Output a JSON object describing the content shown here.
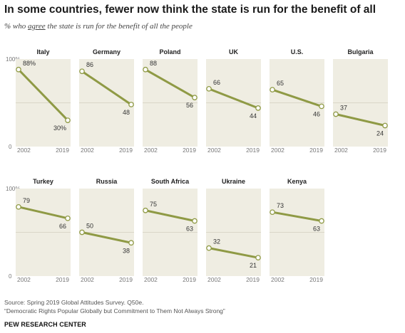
{
  "header": {
    "title": "In some countries, fewer now think the state is run for the benefit of all",
    "subtitle_pre": "% who ",
    "subtitle_em": "agree",
    "subtitle_post": " the state is run for the benefit of all the people"
  },
  "footer": {
    "source": "Source: Spring 2019 Global Attitudes Survey. Q50e.",
    "report": "“Democratic Rights Popular Globally but Commitment to Them Not Always Strong”",
    "org": "PEW RESEARCH CENTER"
  },
  "colors": {
    "line": "#8f9a45",
    "panel": "#efede2",
    "grid": "#d9d6c8",
    "marker_fill": "#ffffff"
  },
  "chart_data": {
    "type": "line",
    "x": [
      "2002",
      "2019"
    ],
    "ylim": [
      0,
      100
    ],
    "y_ticks": [
      "0",
      "100%"
    ],
    "grid": "midline at 50",
    "panels": [
      {
        "name": "Italy",
        "values": [
          88,
          30
        ],
        "labels": [
          "88%",
          "30%"
        ]
      },
      {
        "name": "Germany",
        "values": [
          86,
          48
        ],
        "labels": [
          "86",
          "48"
        ]
      },
      {
        "name": "Poland",
        "values": [
          88,
          56
        ],
        "labels": [
          "88",
          "56"
        ]
      },
      {
        "name": "UK",
        "values": [
          66,
          44
        ],
        "labels": [
          "66",
          "44"
        ]
      },
      {
        "name": "U.S.",
        "values": [
          65,
          46
        ],
        "labels": [
          "65",
          "46"
        ]
      },
      {
        "name": "Bulgaria",
        "values": [
          37,
          24
        ],
        "labels": [
          "37",
          "24"
        ]
      },
      {
        "name": "Turkey",
        "values": [
          79,
          66
        ],
        "labels": [
          "79",
          "66"
        ]
      },
      {
        "name": "Russia",
        "values": [
          50,
          38
        ],
        "labels": [
          "50",
          "38"
        ]
      },
      {
        "name": "South Africa",
        "values": [
          75,
          63
        ],
        "labels": [
          "75",
          "63"
        ]
      },
      {
        "name": "Ukraine",
        "values": [
          32,
          21
        ],
        "labels": [
          "32",
          "21"
        ]
      },
      {
        "name": "Kenya",
        "values": [
          73,
          63
        ],
        "labels": [
          "73",
          "63"
        ]
      }
    ]
  }
}
